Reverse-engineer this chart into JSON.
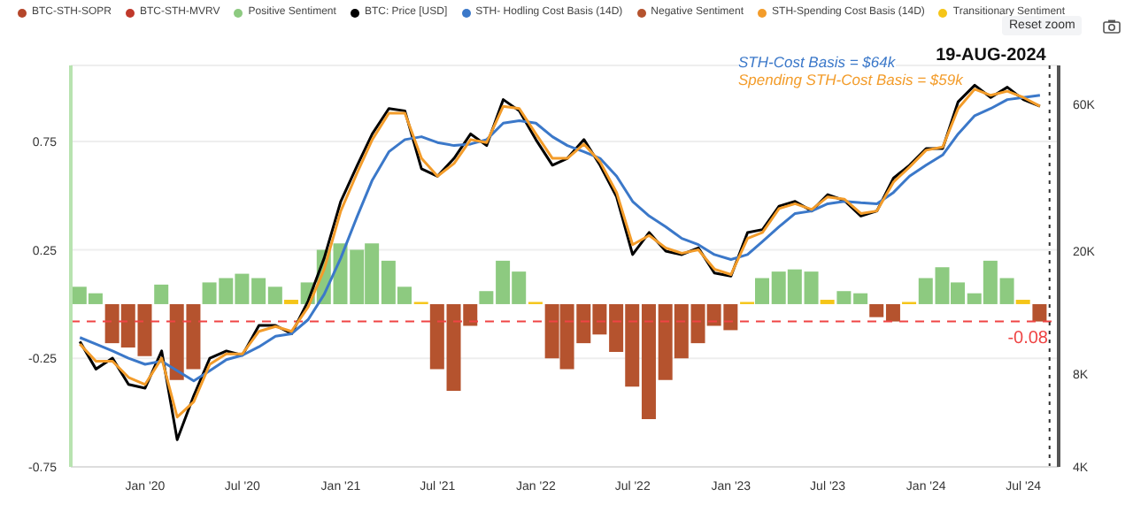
{
  "chart_data": {
    "type": "line",
    "x": [
      "2019-09",
      "2019-10",
      "2019-11",
      "2019-12",
      "2020-01",
      "2020-02",
      "2020-03",
      "2020-04",
      "2020-05",
      "2020-06",
      "2020-07",
      "2020-08",
      "2020-09",
      "2020-10",
      "2020-11",
      "2020-12",
      "2021-01",
      "2021-02",
      "2021-03",
      "2021-04",
      "2021-05",
      "2021-06",
      "2021-07",
      "2021-08",
      "2021-09",
      "2021-10",
      "2021-11",
      "2021-12",
      "2022-01",
      "2022-02",
      "2022-03",
      "2022-04",
      "2022-05",
      "2022-06",
      "2022-07",
      "2022-08",
      "2022-09",
      "2022-10",
      "2022-11",
      "2022-12",
      "2023-01",
      "2023-02",
      "2023-03",
      "2023-04",
      "2023-05",
      "2023-06",
      "2023-07",
      "2023-08",
      "2023-09",
      "2023-10",
      "2023-11",
      "2023-12",
      "2024-01",
      "2024-02",
      "2024-03",
      "2024-04",
      "2024-05",
      "2024-06",
      "2024-07",
      "2024-08"
    ],
    "series": [
      {
        "name": "BTC-STH-SOPR",
        "color": "#b5462a",
        "values": [
          null,
          null,
          null,
          null,
          null,
          null,
          null,
          null,
          null,
          null,
          null,
          null,
          null,
          null,
          null,
          null,
          null,
          null,
          null,
          null,
          null,
          null,
          null,
          null,
          null,
          null,
          null,
          null,
          null,
          null,
          null,
          null,
          null,
          null,
          null,
          null,
          null,
          null,
          null,
          null,
          null,
          null,
          null,
          null,
          null,
          null,
          null,
          null,
          null,
          null,
          null,
          null,
          null,
          null,
          null,
          null,
          null,
          null,
          null,
          null
        ]
      },
      {
        "name": "BTC-STH-MVRV",
        "color": "#c0392b",
        "values": [
          null,
          null,
          null,
          null,
          null,
          null,
          null,
          null,
          null,
          null,
          null,
          null,
          null,
          null,
          null,
          null,
          null,
          null,
          null,
          null,
          null,
          null,
          null,
          null,
          null,
          null,
          null,
          null,
          null,
          null,
          null,
          null,
          null,
          null,
          null,
          null,
          null,
          null,
          null,
          null,
          null,
          null,
          null,
          null,
          null,
          null,
          null,
          null,
          null,
          null,
          null,
          null,
          null,
          null,
          null,
          null,
          null,
          null,
          null,
          null
        ]
      },
      {
        "name": "Positive Sentiment",
        "type": "bar",
        "color": "#8dca80",
        "values": [
          0.08,
          0.05,
          null,
          null,
          null,
          0.09,
          null,
          null,
          0.1,
          0.12,
          0.14,
          0.12,
          0.08,
          null,
          0.1,
          0.25,
          0.28,
          0.25,
          0.28,
          0.2,
          0.08,
          null,
          null,
          null,
          null,
          0.06,
          0.2,
          0.15,
          null,
          null,
          null,
          null,
          null,
          null,
          null,
          null,
          null,
          null,
          null,
          null,
          null,
          null,
          0.12,
          0.15,
          0.16,
          0.15,
          null,
          0.06,
          0.05,
          null,
          null,
          null,
          0.12,
          0.17,
          0.1,
          0.05,
          0.2,
          0.12,
          null,
          null
        ]
      },
      {
        "name": "BTC: Price [USD]",
        "color": "#000000",
        "axis": "y2",
        "values": [
          10200,
          8300,
          9000,
          7400,
          7200,
          9500,
          4900,
          6800,
          9000,
          9500,
          9200,
          11500,
          11500,
          10800,
          13800,
          19000,
          29000,
          38000,
          48000,
          58000,
          57000,
          37000,
          35000,
          40000,
          48000,
          44000,
          62000,
          57000,
          46000,
          38000,
          40000,
          46000,
          38000,
          30000,
          19500,
          23000,
          20000,
          19500,
          20500,
          17000,
          16600,
          23000,
          23500,
          28000,
          29000,
          27000,
          30500,
          29200,
          26000,
          27000,
          34500,
          38000,
          43000,
          43000,
          61000,
          69000,
          63000,
          68000,
          62000,
          59000
        ]
      },
      {
        "name": "STH- Hodling Cost Basis (14D)",
        "color": "#3b78c9",
        "axis": "y2",
        "values": [
          10500,
          10000,
          9500,
          9000,
          8600,
          8800,
          8200,
          7600,
          8200,
          8900,
          9200,
          9800,
          10600,
          10800,
          12000,
          14500,
          19000,
          26000,
          34000,
          42000,
          46000,
          47000,
          45000,
          44000,
          44500,
          46000,
          52000,
          53000,
          52000,
          47000,
          44000,
          42000,
          40000,
          35000,
          29000,
          26000,
          24000,
          22000,
          21000,
          19500,
          18800,
          19500,
          21500,
          24000,
          26500,
          27000,
          28500,
          29000,
          28700,
          28500,
          31000,
          35000,
          38000,
          41000,
          48000,
          55000,
          58000,
          62000,
          63000,
          64000
        ]
      },
      {
        "name": "Negative Sentiment",
        "type": "bar",
        "color": "#b5532e",
        "values": [
          null,
          null,
          -0.18,
          -0.2,
          -0.24,
          null,
          -0.35,
          -0.3,
          null,
          null,
          null,
          null,
          null,
          null,
          null,
          null,
          null,
          null,
          null,
          null,
          null,
          null,
          -0.3,
          -0.4,
          -0.1,
          null,
          null,
          null,
          null,
          -0.25,
          -0.3,
          -0.18,
          -0.14,
          -0.22,
          -0.38,
          -0.53,
          -0.35,
          -0.25,
          -0.18,
          -0.1,
          -0.12,
          null,
          null,
          null,
          null,
          null,
          null,
          null,
          null,
          -0.06,
          -0.08,
          null,
          null,
          null,
          null,
          null,
          null,
          null,
          null,
          -0.08
        ]
      },
      {
        "name": "STH-Spending Cost Basis (14D)",
        "color": "#f39c2a",
        "axis": "y2",
        "values": [
          10000,
          8800,
          8800,
          7800,
          7400,
          9000,
          5800,
          6500,
          8600,
          9300,
          9300,
          11000,
          11400,
          11000,
          13200,
          17500,
          27000,
          36000,
          46000,
          56000,
          56000,
          40000,
          35000,
          38500,
          46000,
          45000,
          59000,
          58000,
          48000,
          40000,
          40000,
          44500,
          39000,
          31000,
          21000,
          22500,
          20500,
          19700,
          20200,
          17500,
          16800,
          22000,
          23000,
          27500,
          28500,
          27300,
          30000,
          29500,
          26500,
          27000,
          33500,
          37500,
          42500,
          43500,
          58000,
          67000,
          64000,
          66000,
          63000,
          59000
        ]
      },
      {
        "name": "Transitionary Sentiment",
        "type": "bar",
        "color": "#f5c518",
        "values": [
          null,
          null,
          null,
          null,
          null,
          null,
          null,
          null,
          null,
          null,
          null,
          null,
          null,
          0.02,
          null,
          null,
          null,
          null,
          null,
          null,
          null,
          0.01,
          null,
          null,
          null,
          null,
          null,
          null,
          0.01,
          null,
          null,
          null,
          null,
          null,
          null,
          null,
          null,
          null,
          null,
          null,
          null,
          0.01,
          null,
          null,
          null,
          null,
          0.02,
          null,
          null,
          null,
          null,
          0.01,
          null,
          null,
          null,
          null,
          null,
          null,
          0.02,
          null
        ]
      }
    ],
    "xlim": [
      "2019-08-15",
      "2024-09-05"
    ],
    "xticks": [
      {
        "value": "2020-01",
        "label": "Jan '20"
      },
      {
        "value": "2020-07",
        "label": "Jul '20"
      },
      {
        "value": "2021-01",
        "label": "Jan '21"
      },
      {
        "value": "2021-07",
        "label": "Jul '21"
      },
      {
        "value": "2022-01",
        "label": "Jan '22"
      },
      {
        "value": "2022-07",
        "label": "Jul '22"
      },
      {
        "value": "2023-01",
        "label": "Jan '23"
      },
      {
        "value": "2023-07",
        "label": "Jul '23"
      },
      {
        "value": "2024-01",
        "label": "Jan '24"
      },
      {
        "value": "2024-07",
        "label": "Jul '24"
      }
    ],
    "ylim": [
      -0.75,
      1.1
    ],
    "yticks": [
      -0.75,
      -0.25,
      0.25,
      0.75
    ],
    "y2lim": [
      4000,
      80000
    ],
    "y2ticks": [
      {
        "value": 4000,
        "label": "4K"
      },
      {
        "value": 8000,
        "label": "8K"
      },
      {
        "value": 20000,
        "label": "20K"
      },
      {
        "value": 60000,
        "label": "60K"
      }
    ],
    "log": "y2",
    "stacked": true,
    "grid": "y",
    "legend": "top",
    "marker": "none",
    "line_style": "solid",
    "ref_lines": [
      {
        "axis": "y",
        "value": -0.08,
        "label": "-0.08",
        "color": "#ef4444",
        "line_style": "dashed"
      },
      {
        "axis": "x",
        "value": "2024-08-19",
        "label": "19-AUG-2024",
        "color": "#333333",
        "line_style": "dotted"
      }
    ],
    "annotations": [
      "STH-Cost Basis = $64k",
      "Spending STH-Cost Basis = $59k",
      "Reset zoom"
    ]
  }
}
